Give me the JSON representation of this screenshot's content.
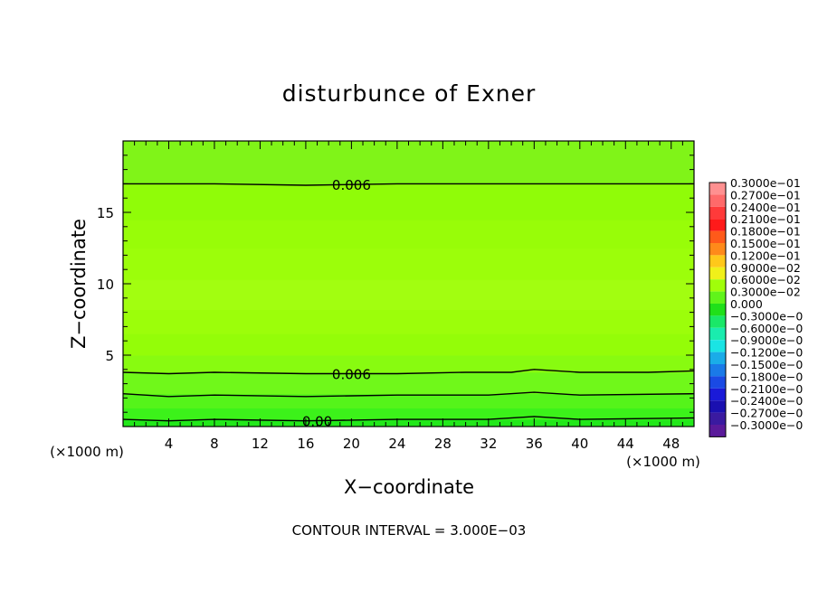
{
  "chart_data": {
    "type": "heatmap",
    "title": "disturbunce of Exner",
    "xlabel": "X−coordinate",
    "ylabel": "Z−coordinate",
    "x_unit_left": "(×1000 m)",
    "x_unit_right": "(×1000 m)",
    "footer": "CONTOUR INTERVAL = 3.000E−03",
    "xlim": [
      0,
      50
    ],
    "ylim": [
      0,
      20
    ],
    "x_ticks": [
      "4",
      "8",
      "12",
      "16",
      "20",
      "24",
      "28",
      "32",
      "36",
      "40",
      "44",
      "48"
    ],
    "x_tick_values": [
      4,
      8,
      12,
      16,
      20,
      24,
      28,
      32,
      36,
      40,
      44,
      48
    ],
    "y_ticks": [
      "5",
      "10",
      "15"
    ],
    "y_tick_values": [
      5,
      10,
      15
    ],
    "bands": [
      {
        "z0": 0.0,
        "z1": 0.5,
        "color": "#22e81a"
      },
      {
        "z0": 0.5,
        "z1": 1.3,
        "color": "#3cf21a"
      },
      {
        "z0": 1.3,
        "z1": 2.3,
        "color": "#55f41a"
      },
      {
        "z0": 2.3,
        "z1": 3.8,
        "color": "#70f81a"
      },
      {
        "z0": 3.8,
        "z1": 5.0,
        "color": "#88fb10"
      },
      {
        "z0": 5.0,
        "z1": 6.5,
        "color": "#94fd08"
      },
      {
        "z0": 6.5,
        "z1": 8.2,
        "color": "#9cfe0a"
      },
      {
        "z0": 8.2,
        "z1": 10.3,
        "color": "#a2fe10"
      },
      {
        "z0": 10.3,
        "z1": 12.5,
        "color": "#9cfe0a"
      },
      {
        "z0": 12.5,
        "z1": 14.5,
        "color": "#98fd08"
      },
      {
        "z0": 14.5,
        "z1": 17.0,
        "color": "#90fc08"
      },
      {
        "z0": 17.0,
        "z1": 20.0,
        "color": "#80f418"
      }
    ],
    "contours": [
      {
        "label": "0.006",
        "label_x": 20,
        "points": [
          [
            0,
            17.0
          ],
          [
            8,
            17.0
          ],
          [
            16,
            16.9
          ],
          [
            24,
            17.0
          ],
          [
            32,
            17.0
          ],
          [
            40,
            17.0
          ],
          [
            50,
            17.0
          ]
        ]
      },
      {
        "label": "0.006",
        "label_x": 20,
        "points": [
          [
            0,
            3.8
          ],
          [
            4,
            3.7
          ],
          [
            8,
            3.8
          ],
          [
            16,
            3.7
          ],
          [
            24,
            3.7
          ],
          [
            30,
            3.8
          ],
          [
            34,
            3.8
          ],
          [
            36,
            4.0
          ],
          [
            40,
            3.8
          ],
          [
            46,
            3.8
          ],
          [
            50,
            3.9
          ]
        ]
      },
      {
        "label": "",
        "label_x": null,
        "points": [
          [
            0,
            2.3
          ],
          [
            4,
            2.1
          ],
          [
            8,
            2.2
          ],
          [
            16,
            2.1
          ],
          [
            24,
            2.2
          ],
          [
            32,
            2.2
          ],
          [
            36,
            2.4
          ],
          [
            40,
            2.2
          ],
          [
            50,
            2.3
          ]
        ]
      },
      {
        "label": "0.00",
        "label_x": 17,
        "points": [
          [
            0,
            0.5
          ],
          [
            4,
            0.4
          ],
          [
            8,
            0.5
          ],
          [
            16,
            0.4
          ],
          [
            24,
            0.5
          ],
          [
            32,
            0.5
          ],
          [
            36,
            0.7
          ],
          [
            40,
            0.5
          ],
          [
            50,
            0.6
          ]
        ]
      }
    ],
    "legend": {
      "placement": "right",
      "labels": [
        "0.3000e−01",
        "0.2700e−01",
        "0.2400e−01",
        "0.2100e−01",
        "0.1800e−01",
        "0.1500e−01",
        "0.1200e−01",
        "0.9000e−02",
        "0.6000e−02",
        "0.3000e−02",
        "0.000",
        "−0.3000e−0",
        "−0.6000e−0",
        "−0.9000e−0",
        "−0.1200e−0",
        "−0.1500e−0",
        "−0.1800e−0",
        "−0.2100e−0",
        "−0.2400e−0",
        "−0.2700e−0",
        "−0.3000e−0"
      ],
      "colors": [
        "#ff9090",
        "#ff6a6a",
        "#ff3a3a",
        "#ff1a1a",
        "#ff5a1a",
        "#ff8a1a",
        "#ffc81a",
        "#f0f01a",
        "#a0fe0a",
        "#60f41a",
        "#20e01a",
        "#1ae868",
        "#1aecae",
        "#1ae4e4",
        "#1aace8",
        "#1a7ae8",
        "#1a4ae4",
        "#1a1ad8",
        "#1a10b0",
        "#3a1aa0",
        "#5a1a9a"
      ]
    }
  }
}
